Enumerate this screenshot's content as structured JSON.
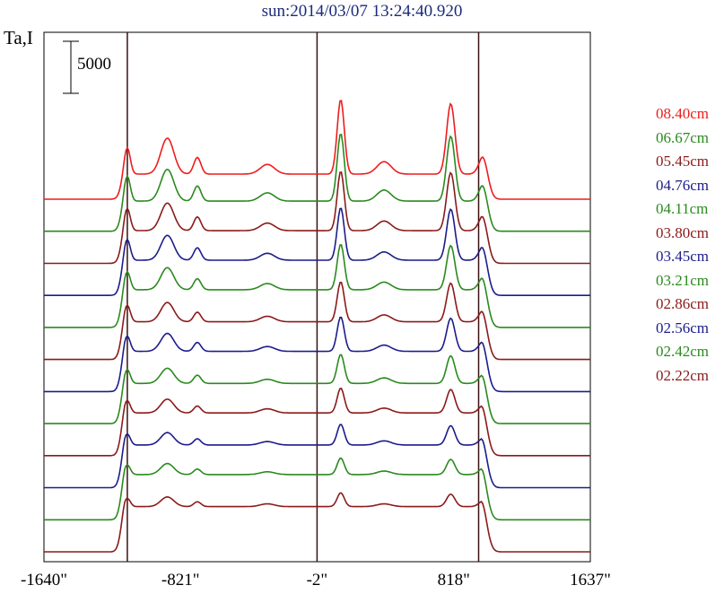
{
  "chart_data": {
    "type": "line",
    "title": "sun:2014/03/07 13:24:40.920",
    "ylabel": "Ta,I",
    "scale_bar": "5000",
    "xlim": [
      -1640,
      1637
    ],
    "x_ticks": [
      {
        "value": -1640,
        "label": "-1640\""
      },
      {
        "value": -821,
        "label": "-821\""
      },
      {
        "value": -2,
        "label": "-2\""
      },
      {
        "value": 818,
        "label": "818\""
      },
      {
        "value": 1637,
        "label": "1637\""
      }
    ],
    "vertical_lines_at": [
      -1140,
      -2,
      967
    ],
    "stacked": true,
    "series": [
      {
        "name": "08.40cm",
        "color": "#ee1c1c",
        "baseline": 0,
        "limb": 1.0,
        "peaks": [
          1.9,
          2.6,
          1.2,
          0.7,
          5.4,
          0.9,
          5.1,
          1.4
        ]
      },
      {
        "name": "06.67cm",
        "color": "#2a8a1e",
        "baseline": 0,
        "limb": 1.2,
        "peaks": [
          1.8,
          2.3,
          1.1,
          0.6,
          4.9,
          0.8,
          4.7,
          1.3
        ]
      },
      {
        "name": "05.45cm",
        "color": "#8b1a1a",
        "baseline": 0,
        "limb": 1.3,
        "peaks": [
          1.6,
          2.0,
          1.0,
          0.55,
          4.3,
          0.7,
          4.2,
          1.2
        ]
      },
      {
        "name": "04.76cm",
        "color": "#1c1c8b",
        "baseline": 0,
        "limb": 1.4,
        "peaks": [
          1.5,
          1.8,
          0.9,
          0.5,
          3.8,
          0.6,
          3.7,
          1.1
        ]
      },
      {
        "name": "04.11cm",
        "color": "#2a8a1e",
        "baseline": 0,
        "limb": 1.5,
        "peaks": [
          1.3,
          1.6,
          0.8,
          0.45,
          3.3,
          0.55,
          3.2,
          1.0
        ]
      },
      {
        "name": "03.80cm",
        "color": "#8b1a1a",
        "baseline": 0,
        "limb": 1.5,
        "peaks": [
          1.2,
          1.4,
          0.7,
          0.4,
          2.9,
          0.5,
          2.8,
          0.9
        ]
      },
      {
        "name": "03.45cm",
        "color": "#1c1c8b",
        "baseline": 0,
        "limb": 1.6,
        "peaks": [
          1.1,
          1.3,
          0.65,
          0.35,
          2.5,
          0.45,
          2.4,
          0.8
        ]
      },
      {
        "name": "03.21cm",
        "color": "#2a8a1e",
        "baseline": 0,
        "limb": 1.6,
        "peaks": [
          1.0,
          1.1,
          0.6,
          0.3,
          2.1,
          0.4,
          2.0,
          0.7
        ]
      },
      {
        "name": "02.86cm",
        "color": "#8b1a1a",
        "baseline": 0,
        "limb": 1.7,
        "peaks": [
          0.9,
          1.0,
          0.5,
          0.3,
          1.8,
          0.35,
          1.7,
          0.6
        ]
      },
      {
        "name": "02.56cm",
        "color": "#1c1c8b",
        "baseline": 0,
        "limb": 1.7,
        "peaks": [
          0.8,
          0.9,
          0.45,
          0.25,
          1.5,
          0.3,
          1.4,
          0.55
        ]
      },
      {
        "name": "02.42cm",
        "color": "#2a8a1e",
        "baseline": 0,
        "limb": 1.8,
        "peaks": [
          0.7,
          0.8,
          0.4,
          0.2,
          1.2,
          0.25,
          1.1,
          0.5
        ]
      },
      {
        "name": "02.22cm",
        "color": "#8b1a1a",
        "baseline": 0,
        "limb": 1.8,
        "peaks": [
          0.6,
          0.7,
          0.35,
          0.2,
          1.0,
          0.2,
          0.9,
          0.45
        ]
      }
    ]
  }
}
